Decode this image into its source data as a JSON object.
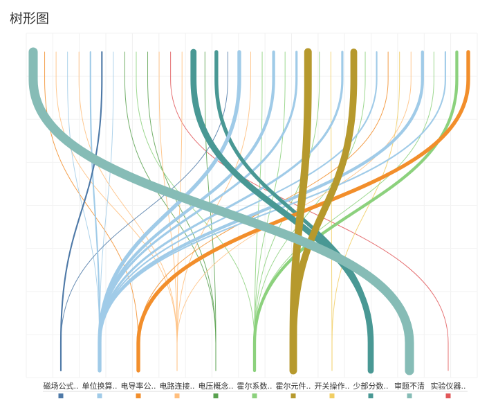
{
  "chart_data": {
    "type": "sankey",
    "title": "树形图",
    "categories": [
      {
        "label": "磁场公式..",
        "color": "#4e79a7"
      },
      {
        "label": "单位换算..",
        "color": "#a0cbe8"
      },
      {
        "label": "电导率公..",
        "color": "#f28e2b"
      },
      {
        "label": "电路连接..",
        "color": "#ffbe7d"
      },
      {
        "label": "电压概念..",
        "color": "#59a14f"
      },
      {
        "label": "霍尔系数..",
        "color": "#8cd17d"
      },
      {
        "label": "霍尔元件..",
        "color": "#b6992d"
      },
      {
        "label": "开关操作..",
        "color": "#f1ce63"
      },
      {
        "label": "少部分数..",
        "color": "#499894"
      },
      {
        "label": "审题不清",
        "color": "#86bcb6"
      },
      {
        "label": "实验仪器..",
        "color": "#e15759"
      }
    ],
    "links": [
      {
        "target": 9,
        "weight": 12
      },
      {
        "target": 2,
        "weight": 1
      },
      {
        "target": 3,
        "weight": 1
      },
      {
        "target": 1,
        "weight": 1
      },
      {
        "target": 3,
        "weight": 1
      },
      {
        "target": 1,
        "weight": 2
      },
      {
        "target": 0,
        "weight": 2
      },
      {
        "target": 1,
        "weight": 1
      },
      {
        "target": 4,
        "weight": 1
      },
      {
        "target": 5,
        "weight": 1
      },
      {
        "target": 4,
        "weight": 1
      },
      {
        "target": 3,
        "weight": 1
      },
      {
        "target": 10,
        "weight": 1
      },
      {
        "target": 3,
        "weight": 1
      },
      {
        "target": 8,
        "weight": 8
      },
      {
        "target": 4,
        "weight": 1
      },
      {
        "target": 8,
        "weight": 5
      },
      {
        "target": 0,
        "weight": 1
      },
      {
        "target": 1,
        "weight": 5
      },
      {
        "target": 3,
        "weight": 1
      },
      {
        "target": 5,
        "weight": 1
      },
      {
        "target": 1,
        "weight": 4
      },
      {
        "target": 5,
        "weight": 1
      },
      {
        "target": 1,
        "weight": 3
      },
      {
        "target": 6,
        "weight": 10
      },
      {
        "target": 5,
        "weight": 1
      },
      {
        "target": 7,
        "weight": 1
      },
      {
        "target": 1,
        "weight": 3
      },
      {
        "target": 6,
        "weight": 9
      },
      {
        "target": 5,
        "weight": 1
      },
      {
        "target": 1,
        "weight": 2
      },
      {
        "target": 2,
        "weight": 1
      },
      {
        "target": 7,
        "weight": 1
      },
      {
        "target": 3,
        "weight": 1
      },
      {
        "target": 1,
        "weight": 4
      },
      {
        "target": 5,
        "weight": 1
      },
      {
        "target": 1,
        "weight": 2
      },
      {
        "target": 5,
        "weight": 4
      },
      {
        "target": 2,
        "weight": 5
      }
    ]
  }
}
